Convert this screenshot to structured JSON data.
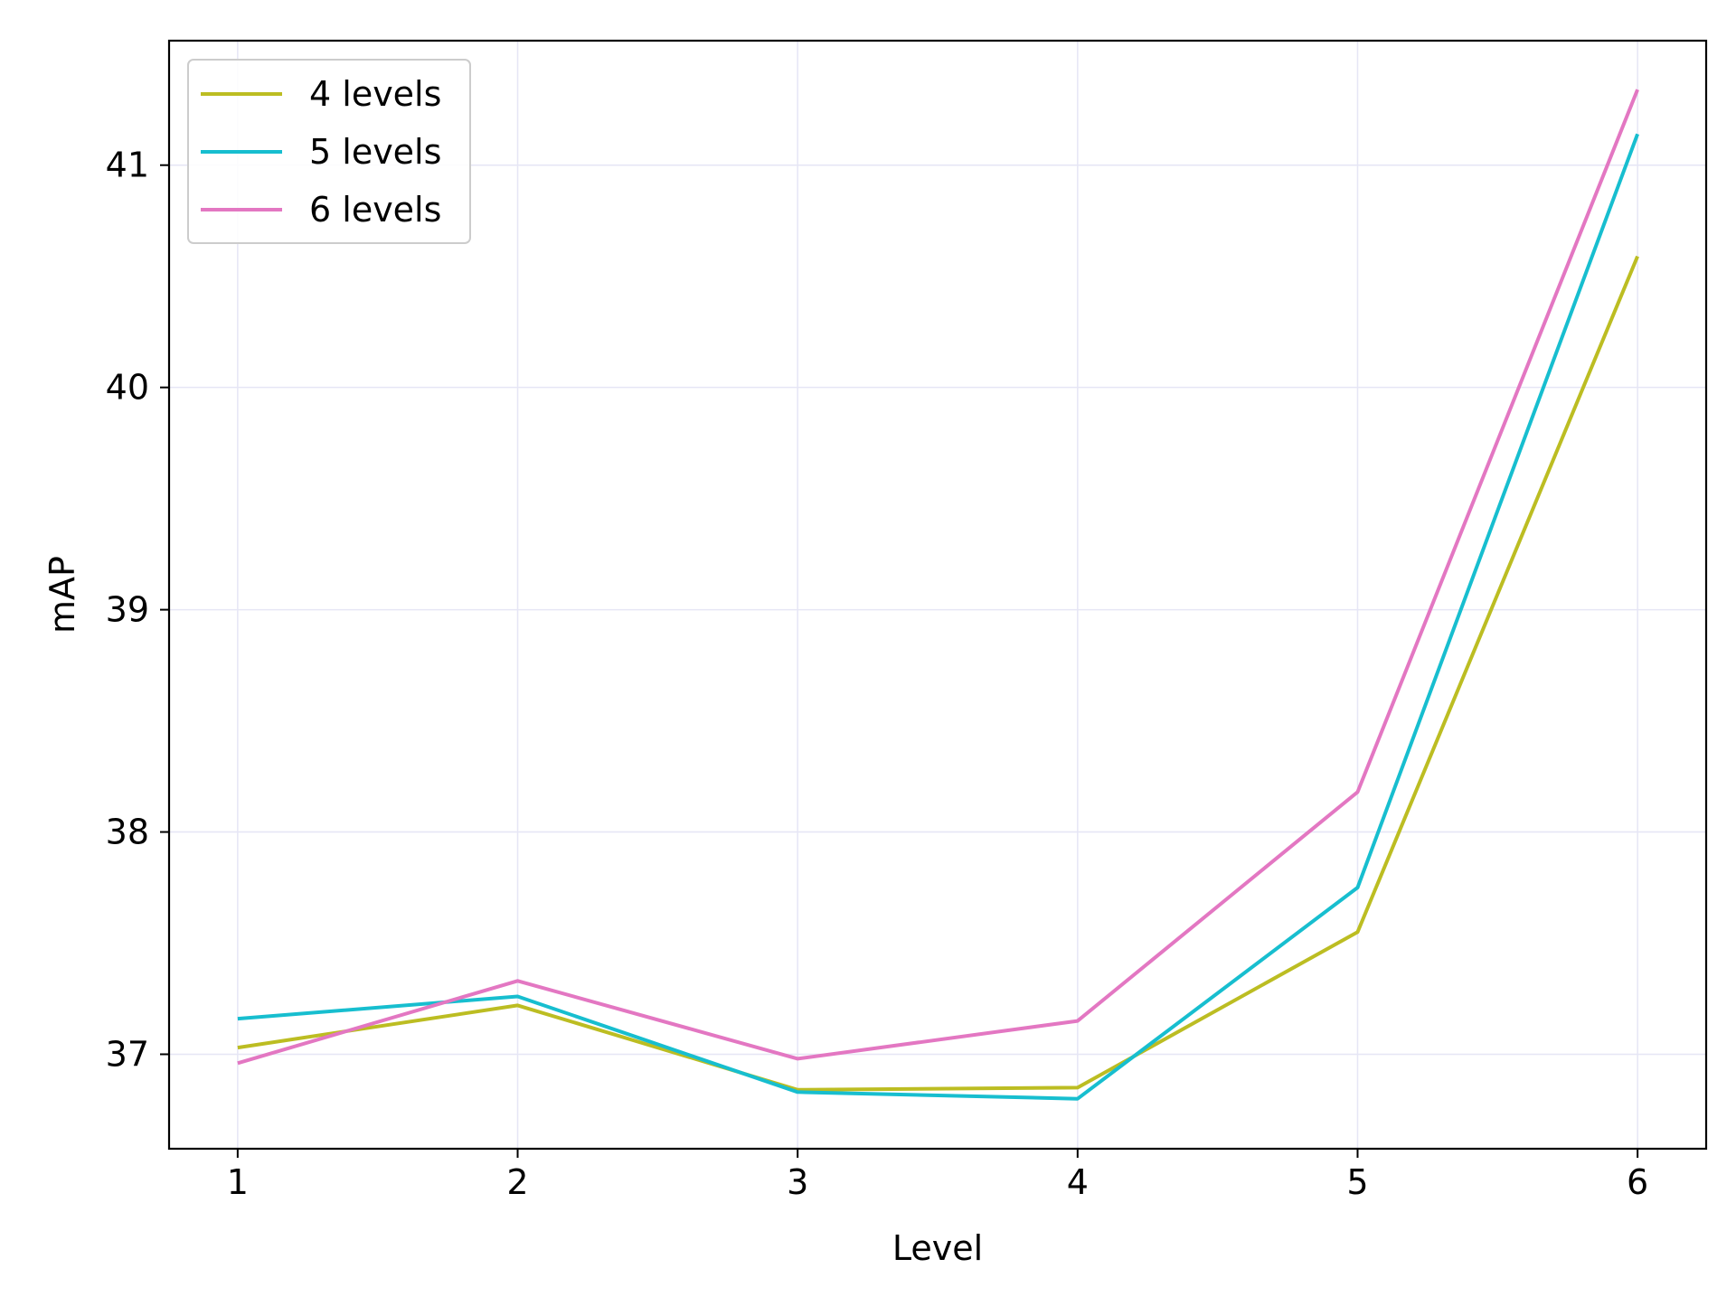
{
  "chart_data": {
    "type": "line",
    "title": "",
    "xlabel": "Level",
    "ylabel": "mAP",
    "x": [
      1,
      2,
      3,
      4,
      5,
      6
    ],
    "xlim": [
      0.755,
      6.245
    ],
    "ylim": [
      36.575,
      41.56
    ],
    "xticks": [
      1,
      2,
      3,
      4,
      5,
      6
    ],
    "xtick_labels": [
      "1",
      "2",
      "3",
      "4",
      "5",
      "6"
    ],
    "yticks": [
      37,
      38,
      39,
      40,
      41
    ],
    "ytick_labels": [
      "37",
      "38",
      "39",
      "40",
      "41"
    ],
    "grid": true,
    "legend_position": "top-left",
    "series": [
      {
        "name": "4 levels",
        "color": "#bcbd22",
        "values": [
          37.03,
          37.22,
          36.84,
          36.85,
          37.55,
          40.59
        ]
      },
      {
        "name": "5 levels",
        "color": "#17becf",
        "values": [
          37.16,
          37.26,
          36.83,
          36.8,
          37.75,
          41.14
        ]
      },
      {
        "name": "6 levels",
        "color": "#e377c2",
        "values": [
          36.96,
          37.33,
          36.98,
          37.15,
          38.18,
          41.34
        ]
      }
    ]
  }
}
